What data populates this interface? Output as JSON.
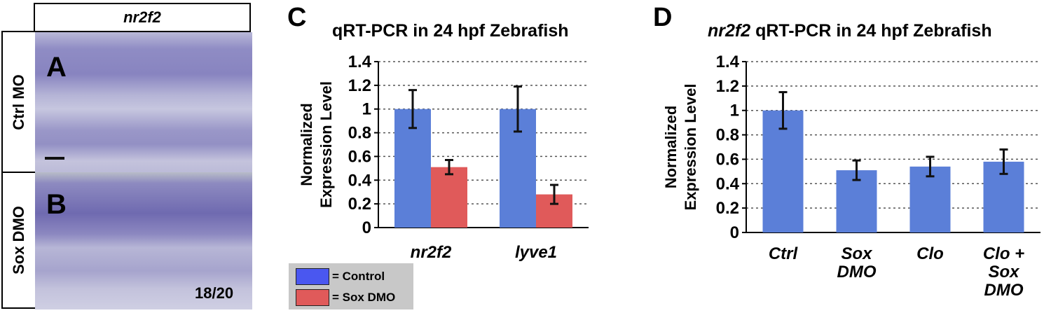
{
  "panel_ab": {
    "header": "nr2f2",
    "rows": [
      {
        "letter": "A",
        "label": "Ctrl MO"
      },
      {
        "letter": "B",
        "label": "Sox DMO"
      }
    ],
    "count": "18/20"
  },
  "colors": {
    "control": "#5b7fd8",
    "sox_dmo": "#e05a5a",
    "grid": "#555555",
    "legend_bg": "#c8c8c8"
  },
  "legend": {
    "items": [
      {
        "label": "= Control",
        "color": "#4a57f0"
      },
      {
        "label": "= Sox DMO",
        "color": "#e05a5a"
      }
    ]
  },
  "chart_data": [
    {
      "panel": "C",
      "type": "bar",
      "title": "qRT-PCR  in 24 hpf Zebrafish",
      "ylabel_line1": "Normalized",
      "ylabel_line2": "Expression Level",
      "ylim": [
        0,
        1.4
      ],
      "yticks": [
        "0",
        "0.2",
        "0.4",
        "0.6",
        "0.8",
        "1",
        "1.2",
        "1.4"
      ],
      "grid": true,
      "categories": [
        "nr2f2",
        "lyve1"
      ],
      "series": [
        {
          "name": "Control",
          "color": "#5b7fd8",
          "values": [
            1.0,
            1.0
          ],
          "errors": [
            0.16,
            0.19
          ]
        },
        {
          "name": "Sox DMO",
          "color": "#e05a5a",
          "values": [
            0.51,
            0.28
          ],
          "errors": [
            0.06,
            0.08
          ]
        }
      ]
    },
    {
      "panel": "D",
      "type": "bar",
      "title_italic": "nr2f2",
      "title_rest": " qRT-PCR  in 24 hpf Zebrafish",
      "ylabel_line1": "Normalized",
      "ylabel_line2": "Expression Level",
      "ylim": [
        0,
        1.4
      ],
      "yticks": [
        "0",
        "0.2",
        "0.4",
        "0.6",
        "0.8",
        "1",
        "1.2",
        "1.4"
      ],
      "grid": true,
      "categories": [
        [
          "Ctrl"
        ],
        [
          "Sox",
          "DMO"
        ],
        [
          "Clo"
        ],
        [
          "Clo +",
          "Sox",
          "DMO"
        ]
      ],
      "series": [
        {
          "color": "#5b7fd8",
          "values": [
            1.0,
            0.51,
            0.54,
            0.58
          ],
          "errors": [
            0.15,
            0.08,
            0.08,
            0.1
          ]
        }
      ]
    }
  ]
}
